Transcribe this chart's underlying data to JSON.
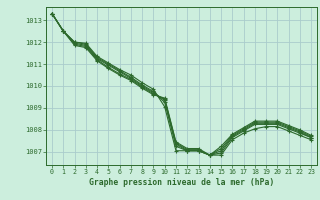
{
  "title": "Graphe pression niveau de la mer (hPa)",
  "bg_color": "#cceedd",
  "grid_color": "#aacccc",
  "line_color": "#2d6a2d",
  "marker_color": "#2d6a2d",
  "xlim": [
    -0.5,
    23.5
  ],
  "ylim": [
    1006.4,
    1013.6
  ],
  "yticks": [
    1007,
    1008,
    1009,
    1010,
    1011,
    1012,
    1013
  ],
  "xticks": [
    0,
    1,
    2,
    3,
    4,
    5,
    6,
    7,
    8,
    9,
    10,
    11,
    12,
    13,
    14,
    15,
    16,
    17,
    18,
    19,
    20,
    21,
    22,
    23
  ],
  "series": [
    [
      1013.3,
      1012.5,
      1012.0,
      1011.95,
      1011.35,
      1011.05,
      1010.75,
      1010.5,
      1010.15,
      1009.85,
      1009.05,
      1007.05,
      1007.05,
      1007.05,
      1006.85,
      1006.85,
      1007.55,
      1007.85,
      1008.05,
      1008.15,
      1008.15,
      1007.95,
      1007.75,
      1007.55
    ],
    [
      1013.3,
      1012.5,
      1012.0,
      1011.9,
      1011.3,
      1011.0,
      1010.7,
      1010.4,
      1010.05,
      1009.75,
      1009.25,
      1007.25,
      1007.05,
      1007.05,
      1006.85,
      1006.95,
      1007.65,
      1007.95,
      1008.25,
      1008.25,
      1008.25,
      1008.05,
      1007.85,
      1007.65
    ],
    [
      1013.3,
      1012.5,
      1011.95,
      1011.85,
      1011.25,
      1010.95,
      1010.65,
      1010.35,
      1010.0,
      1009.7,
      1009.35,
      1007.35,
      1007.05,
      1007.05,
      1006.85,
      1007.05,
      1007.7,
      1008.0,
      1008.3,
      1008.3,
      1008.3,
      1008.1,
      1007.9,
      1007.65
    ],
    [
      1013.3,
      1012.5,
      1011.9,
      1011.8,
      1011.2,
      1010.85,
      1010.55,
      1010.3,
      1009.95,
      1009.65,
      1009.4,
      1007.4,
      1007.1,
      1007.1,
      1006.85,
      1007.15,
      1007.75,
      1008.05,
      1008.35,
      1008.35,
      1008.35,
      1008.15,
      1007.95,
      1007.7
    ],
    [
      1013.3,
      1012.5,
      1011.85,
      1011.75,
      1011.15,
      1010.8,
      1010.5,
      1010.25,
      1009.9,
      1009.6,
      1009.45,
      1007.45,
      1007.15,
      1007.15,
      1006.85,
      1007.25,
      1007.8,
      1008.1,
      1008.4,
      1008.4,
      1008.4,
      1008.2,
      1008.0,
      1007.75
    ]
  ]
}
